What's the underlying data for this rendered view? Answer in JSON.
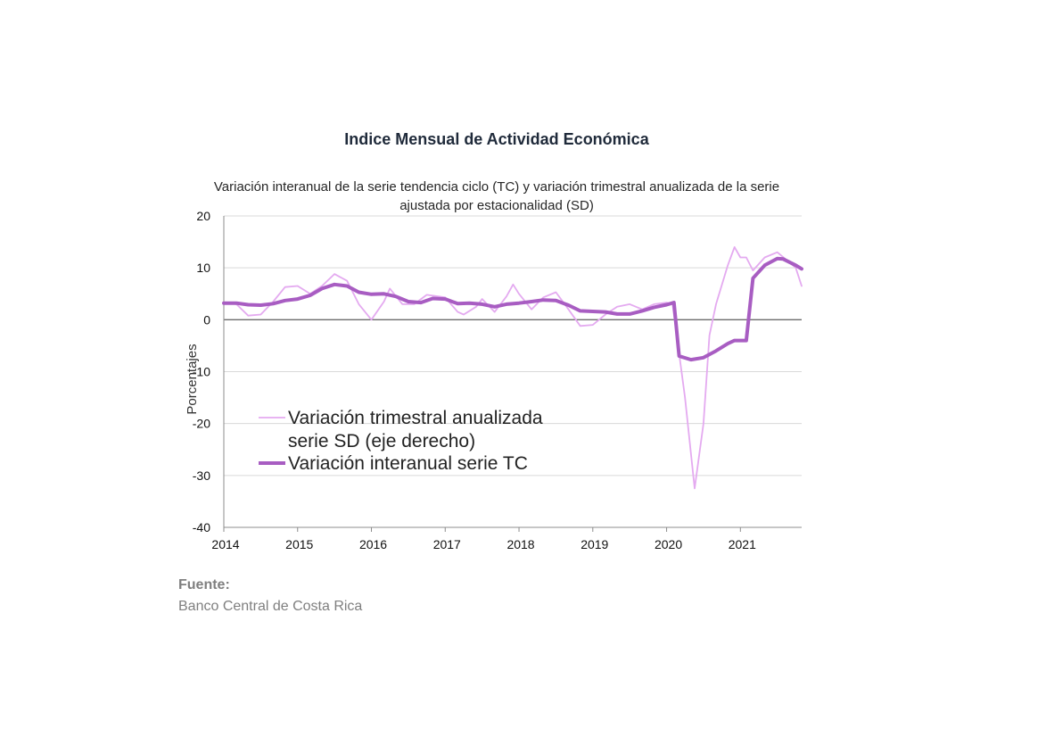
{
  "chart_data": {
    "type": "line",
    "title": "Indice Mensual de  Actividad Económica",
    "subtitle_lines": [
      "Variación interanual de la serie tendencia ciclo (TC) y variación trimestral anualizada de la serie",
      "ajustada por estacionalidad (SD)"
    ],
    "ylabel": "Porcentajes",
    "xlabel": "",
    "ylim": [
      -40,
      20
    ],
    "yticks": [
      20,
      10,
      0,
      -10,
      -20,
      -30,
      -40
    ],
    "xlim": [
      2014,
      2021.83
    ],
    "xticks": [
      2014,
      2015,
      2016,
      2017,
      2018,
      2019,
      2020,
      2021
    ],
    "grid": true,
    "legend_position": "lower-left",
    "series": [
      {
        "name": "Variación trimestral anualizada serie SD (eje derecho)",
        "name_lines": [
          "Variación trimestral anualizada",
          "serie SD (eje derecho)"
        ],
        "color": "#e4aaf0",
        "points": [
          [
            2014.0,
            3.2
          ],
          [
            2014.17,
            3.0
          ],
          [
            2014.33,
            0.8
          ],
          [
            2014.5,
            1.0
          ],
          [
            2014.67,
            3.5
          ],
          [
            2014.83,
            6.3
          ],
          [
            2015.0,
            6.5
          ],
          [
            2015.17,
            5.0
          ],
          [
            2015.33,
            6.5
          ],
          [
            2015.5,
            8.8
          ],
          [
            2015.67,
            7.5
          ],
          [
            2015.83,
            3.0
          ],
          [
            2016.0,
            0.0
          ],
          [
            2016.17,
            3.5
          ],
          [
            2016.25,
            6.0
          ],
          [
            2016.42,
            3.0
          ],
          [
            2016.58,
            3.0
          ],
          [
            2016.75,
            4.8
          ],
          [
            2017.0,
            4.3
          ],
          [
            2017.17,
            1.5
          ],
          [
            2017.25,
            1.0
          ],
          [
            2017.42,
            2.5
          ],
          [
            2017.5,
            4.0
          ],
          [
            2017.67,
            1.5
          ],
          [
            2017.83,
            4.5
          ],
          [
            2017.92,
            6.8
          ],
          [
            2018.0,
            5.0
          ],
          [
            2018.17,
            2.0
          ],
          [
            2018.33,
            4.3
          ],
          [
            2018.5,
            5.3
          ],
          [
            2018.67,
            2.0
          ],
          [
            2018.83,
            -1.2
          ],
          [
            2019.0,
            -1.0
          ],
          [
            2019.17,
            1.0
          ],
          [
            2019.33,
            2.5
          ],
          [
            2019.5,
            3.0
          ],
          [
            2019.67,
            2.0
          ],
          [
            2019.83,
            3.0
          ],
          [
            2020.0,
            3.3
          ],
          [
            2020.08,
            3.0
          ],
          [
            2020.25,
            -15.0
          ],
          [
            2020.38,
            -32.5
          ],
          [
            2020.5,
            -20.0
          ],
          [
            2020.58,
            -3.0
          ],
          [
            2020.67,
            3.0
          ],
          [
            2020.83,
            10.5
          ],
          [
            2020.92,
            14.0
          ],
          [
            2021.0,
            12.0
          ],
          [
            2021.08,
            12.0
          ],
          [
            2021.17,
            9.5
          ],
          [
            2021.33,
            12.0
          ],
          [
            2021.5,
            13.0
          ],
          [
            2021.67,
            11.0
          ],
          [
            2021.75,
            10.0
          ],
          [
            2021.83,
            6.5
          ]
        ]
      },
      {
        "name": "Variación interanual serie TC",
        "name_lines": [
          "Variación interanual serie TC"
        ],
        "color": "#a85dc2",
        "points": [
          [
            2014.0,
            3.2
          ],
          [
            2014.17,
            3.2
          ],
          [
            2014.33,
            2.9
          ],
          [
            2014.5,
            2.8
          ],
          [
            2014.67,
            3.1
          ],
          [
            2014.83,
            3.7
          ],
          [
            2015.0,
            4.0
          ],
          [
            2015.17,
            4.7
          ],
          [
            2015.33,
            6.0
          ],
          [
            2015.5,
            6.8
          ],
          [
            2015.67,
            6.5
          ],
          [
            2015.83,
            5.3
          ],
          [
            2016.0,
            4.9
          ],
          [
            2016.17,
            5.0
          ],
          [
            2016.33,
            4.5
          ],
          [
            2016.5,
            3.5
          ],
          [
            2016.67,
            3.3
          ],
          [
            2016.83,
            4.1
          ],
          [
            2017.0,
            4.0
          ],
          [
            2017.17,
            3.1
          ],
          [
            2017.33,
            3.2
          ],
          [
            2017.5,
            3.0
          ],
          [
            2017.67,
            2.5
          ],
          [
            2017.83,
            3.0
          ],
          [
            2018.0,
            3.2
          ],
          [
            2018.17,
            3.5
          ],
          [
            2018.33,
            3.8
          ],
          [
            2018.5,
            3.7
          ],
          [
            2018.67,
            2.8
          ],
          [
            2018.83,
            1.7
          ],
          [
            2019.0,
            1.6
          ],
          [
            2019.17,
            1.5
          ],
          [
            2019.33,
            1.1
          ],
          [
            2019.5,
            1.1
          ],
          [
            2019.67,
            1.7
          ],
          [
            2019.83,
            2.4
          ],
          [
            2020.0,
            2.9
          ],
          [
            2020.1,
            3.3
          ],
          [
            2020.17,
            -7.0
          ],
          [
            2020.33,
            -7.7
          ],
          [
            2020.5,
            -7.3
          ],
          [
            2020.67,
            -6.0
          ],
          [
            2020.83,
            -4.6
          ],
          [
            2020.92,
            -4.0
          ],
          [
            2021.08,
            -4.0
          ],
          [
            2021.17,
            8.0
          ],
          [
            2021.33,
            10.5
          ],
          [
            2021.5,
            11.8
          ],
          [
            2021.58,
            11.7
          ],
          [
            2021.75,
            10.5
          ],
          [
            2021.83,
            9.8
          ]
        ]
      }
    ]
  },
  "footer": {
    "source_label": "Fuente:",
    "source_text": "Banco Central de Costa Rica"
  }
}
